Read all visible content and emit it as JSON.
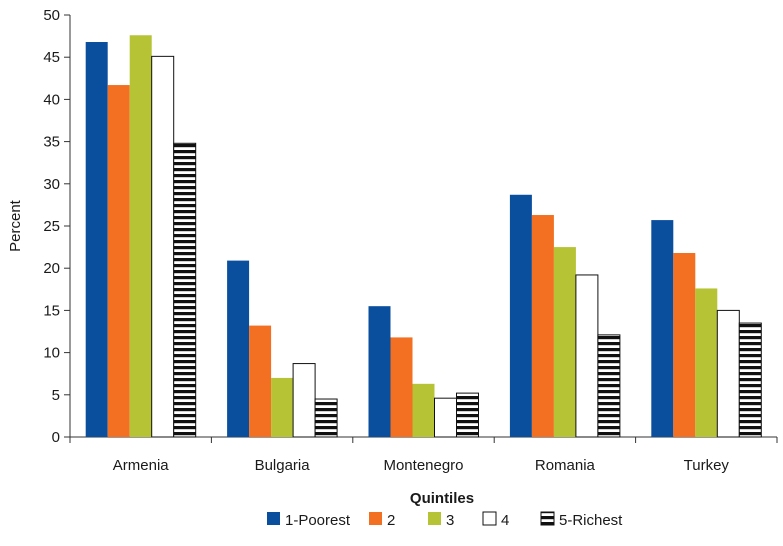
{
  "chart_data": {
    "type": "bar",
    "ylabel": "Percent",
    "xlabel": "Quintiles",
    "ylim": [
      0,
      50
    ],
    "yticks": [
      0,
      5,
      10,
      15,
      20,
      25,
      30,
      35,
      40,
      45,
      50
    ],
    "grid": false,
    "legend_position": "bottom",
    "categories": [
      "Armenia",
      "Bulgaria",
      "Montenegro",
      "Romania",
      "Turkey"
    ],
    "series": [
      {
        "name": "1-Poorest",
        "color": "#0a4f9e",
        "pattern": "solid",
        "values": [
          46.8,
          20.9,
          15.5,
          28.7,
          25.7
        ]
      },
      {
        "name": "2",
        "color": "#f36f21",
        "pattern": "solid",
        "values": [
          41.7,
          13.2,
          11.8,
          26.3,
          21.8
        ]
      },
      {
        "name": "3",
        "color": "#b5c334",
        "pattern": "solid",
        "values": [
          47.6,
          7.0,
          6.3,
          22.5,
          17.6
        ]
      },
      {
        "name": "4",
        "color": "#ffffff",
        "pattern": "outline",
        "values": [
          45.1,
          8.7,
          4.6,
          19.2,
          15.0
        ]
      },
      {
        "name": "5-Richest",
        "color": "#ffffff",
        "pattern": "hstripes",
        "values": [
          34.8,
          4.5,
          5.2,
          12.1,
          13.5
        ]
      }
    ]
  }
}
